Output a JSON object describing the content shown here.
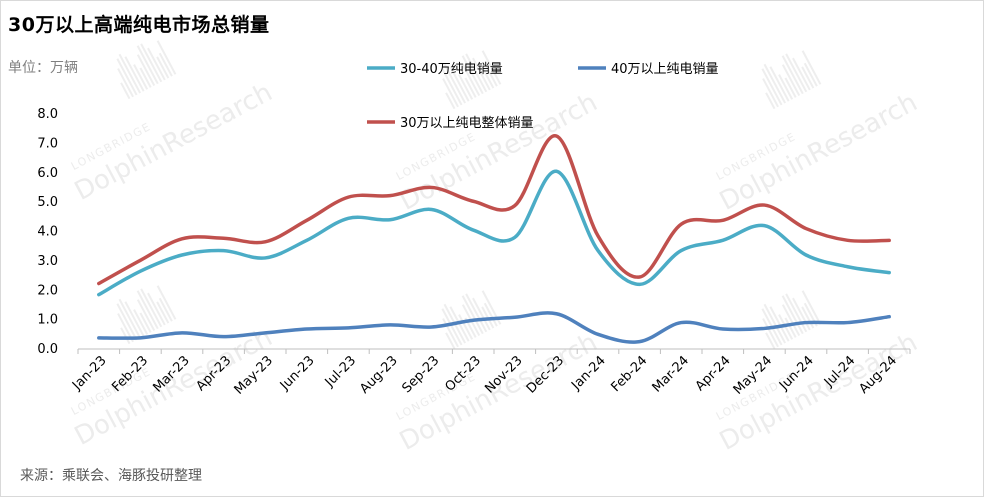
{
  "header": {
    "title": "30万以上高端纯电市场总销量",
    "unit": "单位：万辆"
  },
  "footer": {
    "source": "来源：乘联会、海豚投研整理"
  },
  "watermark": {
    "brand": "LONGBRIDGE",
    "name": "DolphinResearch"
  },
  "chart_data": {
    "type": "line",
    "title": "30万以上高端纯电市场总销量",
    "ylabel": "单位：万辆",
    "xlabel": "",
    "ylim": [
      0,
      8
    ],
    "y_ticks": [
      "0.0",
      "1.0",
      "2.0",
      "3.0",
      "4.0",
      "5.0",
      "6.0",
      "7.0",
      "8.0"
    ],
    "grid": false,
    "legend_position": "top",
    "categories": [
      "Jan-23",
      "Feb-23",
      "Mar-23",
      "Apr-23",
      "May-23",
      "Jun-23",
      "Jul-23",
      "Aug-23",
      "Sep-23",
      "Oct-23",
      "Nov-23",
      "Dec-23",
      "Jan-24",
      "Feb-24",
      "Mar-24",
      "Apr-24",
      "May-24",
      "Jun-24",
      "Jul-24",
      "Aug-24"
    ],
    "series": [
      {
        "name": "30-40万纯电销量",
        "color": "#4bacc6",
        "values": [
          1.85,
          2.65,
          3.2,
          3.35,
          3.1,
          3.7,
          4.45,
          4.4,
          4.75,
          4.05,
          3.8,
          6.05,
          3.35,
          2.2,
          3.35,
          3.7,
          4.2,
          3.2,
          2.8,
          2.6
        ]
      },
      {
        "name": "40万以上纯电销量",
        "color": "#4f81bd",
        "values": [
          0.38,
          0.38,
          0.55,
          0.42,
          0.55,
          0.68,
          0.72,
          0.82,
          0.75,
          0.98,
          1.08,
          1.2,
          0.5,
          0.25,
          0.9,
          0.68,
          0.7,
          0.9,
          0.9,
          1.1
        ]
      },
      {
        "name": "30万以上纯电整体销量",
        "color": "#c0504d",
        "values": [
          2.23,
          3.02,
          3.75,
          3.77,
          3.65,
          4.38,
          5.17,
          5.22,
          5.5,
          5.03,
          4.88,
          7.25,
          3.85,
          2.45,
          4.25,
          4.38,
          4.9,
          4.1,
          3.7,
          3.7
        ]
      }
    ]
  }
}
